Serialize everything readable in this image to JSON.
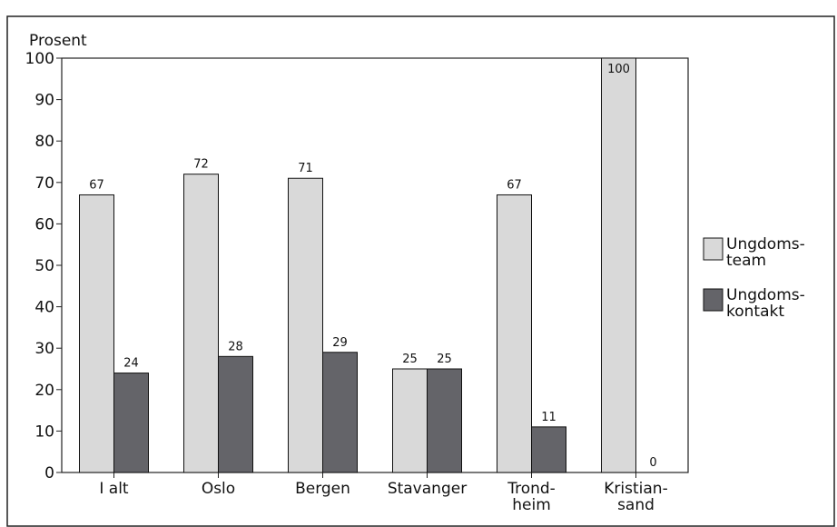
{
  "chart_data": {
    "type": "bar",
    "y_label": "Prosent",
    "categories": [
      "I alt",
      "Oslo",
      "Bergen",
      "Stavanger",
      "Trond-\nheim",
      "Kristian-\nsand"
    ],
    "series": [
      {
        "name": "Ungdoms-\nteam",
        "color": "#d9d9d9",
        "values": [
          67,
          72,
          71,
          25,
          67,
          100
        ]
      },
      {
        "name": "Ungdoms-\nkontakt",
        "color": "#646469",
        "values": [
          24,
          28,
          29,
          25,
          11,
          0
        ]
      }
    ],
    "ylim": [
      0,
      100
    ],
    "yticks": [
      0,
      10,
      20,
      30,
      40,
      50,
      60,
      70,
      80,
      90,
      100
    ],
    "grid": false,
    "legend": "right"
  }
}
